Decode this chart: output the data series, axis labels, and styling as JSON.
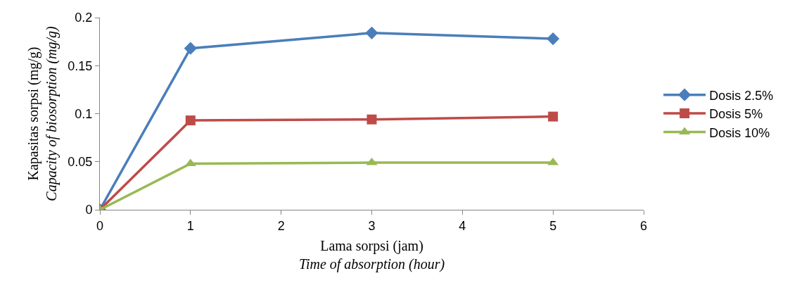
{
  "chart_data": {
    "type": "line",
    "xlabel": "Lama sorpsi (jam)\nTime of absorption (hour)",
    "ylabel": "Kapasitas sorpsi (mg/g)\nCapacity of biosorption (mg/g)",
    "x": [
      0,
      1,
      3,
      5
    ],
    "series": [
      {
        "name": "Dosis 2.5%",
        "color": "#4a7ebb",
        "marker": "diamond",
        "values": [
          0,
          0.168,
          0.184,
          0.178
        ]
      },
      {
        "name": "Dosis 5%",
        "color": "#be4b48",
        "marker": "square",
        "values": [
          0,
          0.093,
          0.094,
          0.097
        ]
      },
      {
        "name": "Dosis 10%",
        "color": "#98b954",
        "marker": "triangle",
        "values": [
          0,
          0.048,
          0.049,
          0.049
        ]
      }
    ],
    "xlim": [
      0,
      6
    ],
    "xticks": [
      0,
      1,
      2,
      3,
      4,
      5,
      6
    ],
    "ylim": [
      0,
      0.2
    ],
    "yticks": [
      0,
      0.05,
      0.1,
      0.15,
      0.2
    ],
    "grid": false,
    "legend": "right"
  }
}
